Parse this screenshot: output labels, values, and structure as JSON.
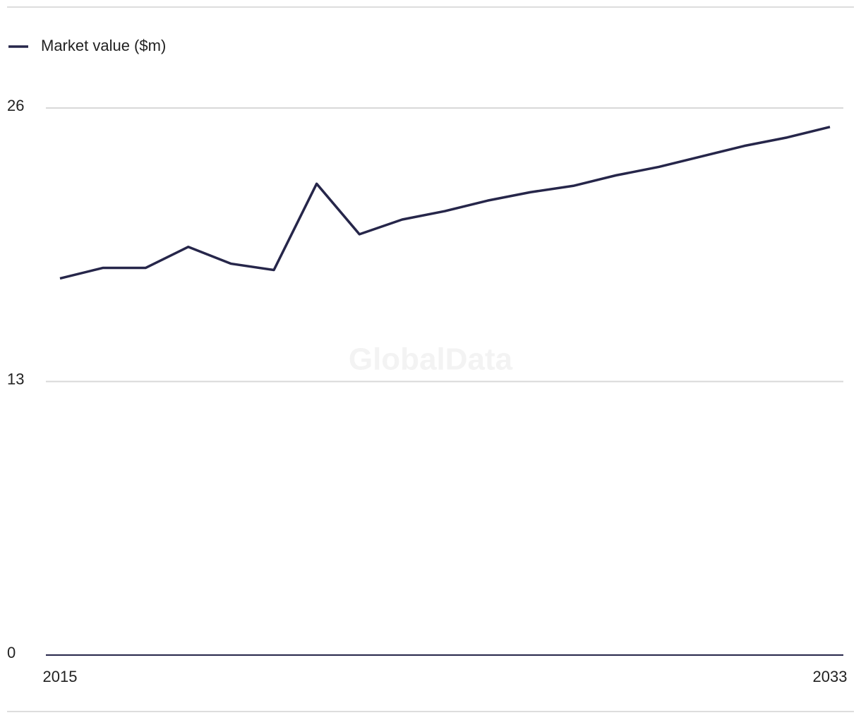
{
  "chart_data": {
    "type": "line",
    "legend": "top-left",
    "watermark": "GlobalData",
    "x": [
      2015,
      2016,
      2017,
      2018,
      2019,
      2020,
      2021,
      2022,
      2023,
      2024,
      2025,
      2026,
      2027,
      2028,
      2029,
      2030,
      2031,
      2032,
      2033
    ],
    "series": [
      {
        "name": "Market value ($m)",
        "color": "#26264a",
        "values": [
          17.9,
          18.4,
          18.4,
          19.4,
          18.6,
          18.3,
          22.4,
          20.0,
          20.7,
          21.1,
          21.6,
          22.0,
          22.3,
          22.8,
          23.2,
          23.7,
          24.2,
          24.6,
          25.1
        ]
      }
    ],
    "xlim": [
      2015,
      2033
    ],
    "xticks": [
      2015,
      2033
    ],
    "ylim": [
      0,
      26
    ],
    "yticks": [
      0,
      13,
      26
    ],
    "grid": true
  }
}
